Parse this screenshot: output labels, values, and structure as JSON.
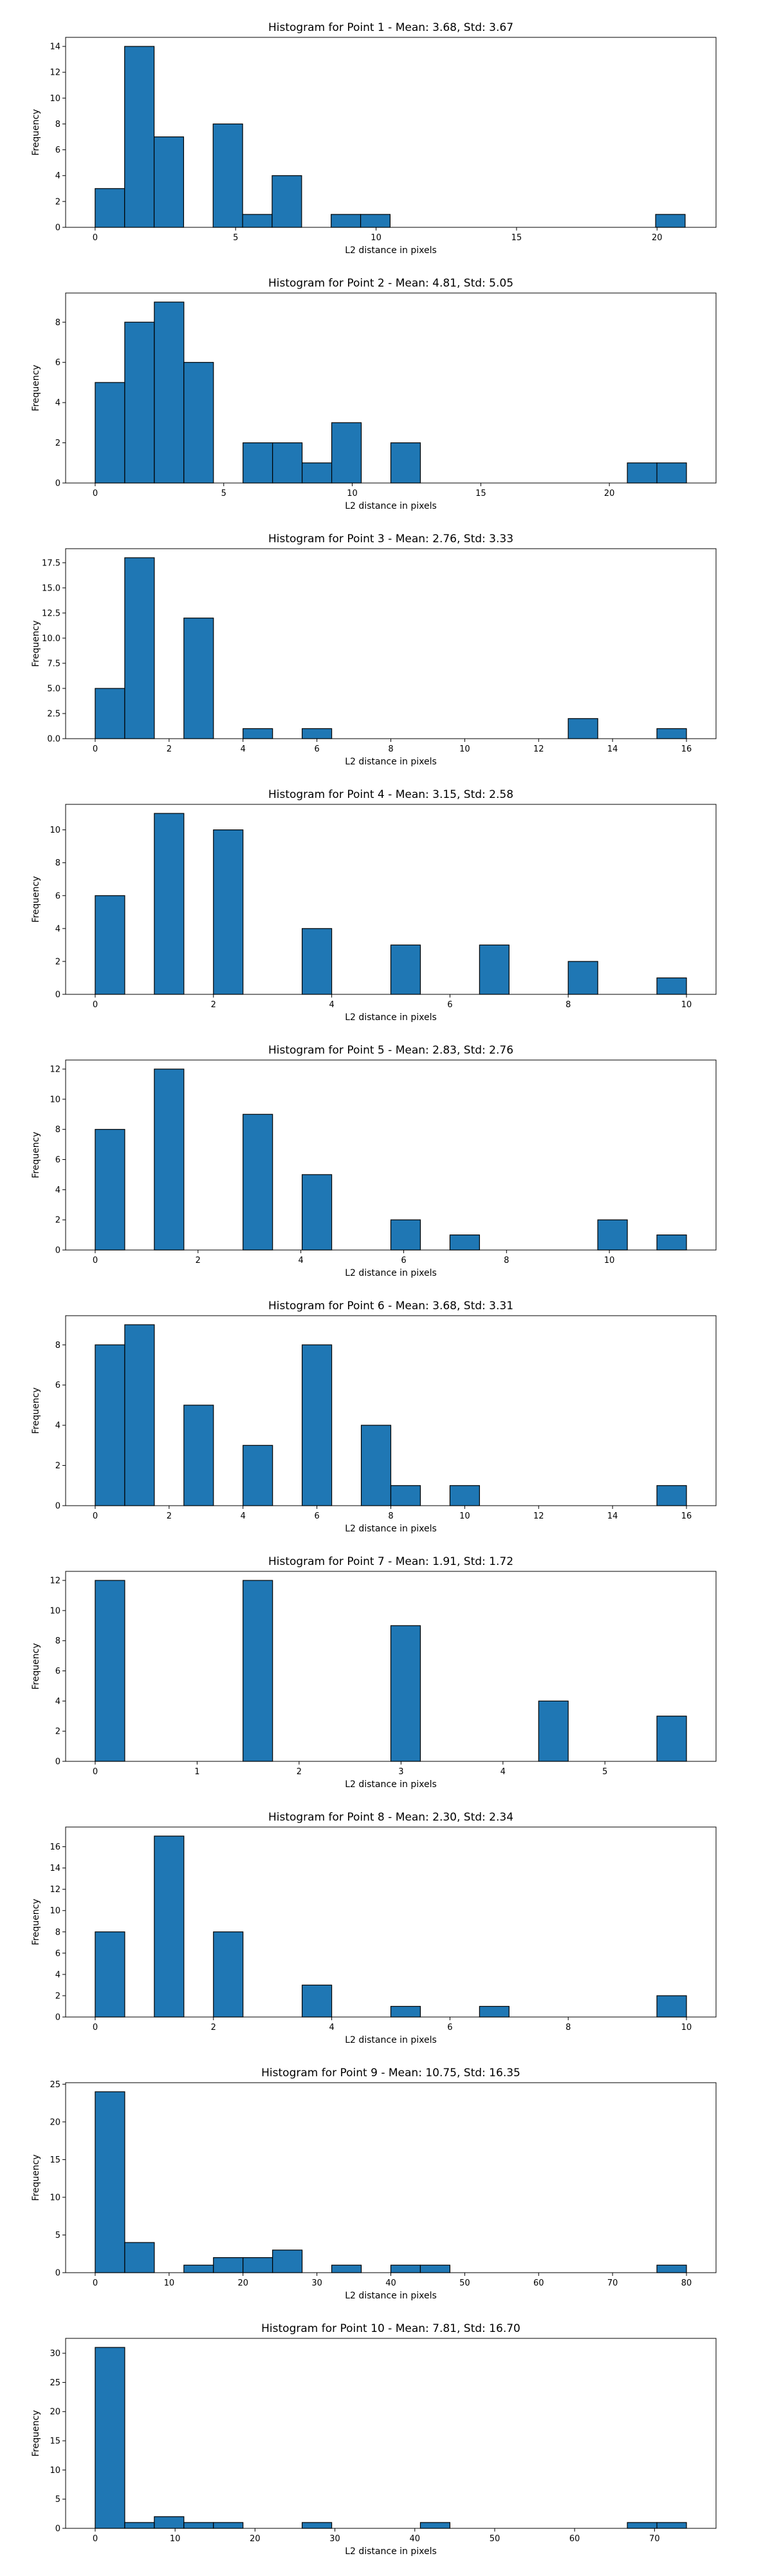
{
  "style": {
    "bar_fill": "#1f77b4",
    "bar_edge": "#000000",
    "axes_edge": "#000000",
    "background": "#ffffff"
  },
  "chart_data": [
    {
      "type": "bar",
      "title": "Histogram for Point 1 - Mean: 3.68, Std: 3.67",
      "xlabel": "L2 distance in pixels",
      "ylabel": "Frequency",
      "xlim": [
        -1.05,
        22.1
      ],
      "ylim": [
        0,
        14.7
      ],
      "xticks": [
        0,
        5,
        10,
        15,
        20
      ],
      "yticks": [
        0,
        2,
        4,
        6,
        8,
        10,
        12,
        14
      ],
      "bins": [
        [
          0,
          1.05
        ],
        [
          1.05,
          2.1
        ],
        [
          2.1,
          3.15
        ],
        [
          4.2,
          5.25
        ],
        [
          5.25,
          6.3
        ],
        [
          6.3,
          7.35
        ],
        [
          8.4,
          9.45
        ],
        [
          9.45,
          10.5
        ],
        [
          19.95,
          21.0
        ]
      ],
      "values": [
        3,
        14,
        7,
        8,
        1,
        4,
        1,
        1,
        1
      ],
      "grid": false
    },
    {
      "type": "bar",
      "title": "Histogram for Point 2 - Mean: 4.81, Std: 5.05",
      "xlabel": "L2 distance in pixels",
      "ylabel": "Frequency",
      "xlim": [
        -1.15,
        24.15
      ],
      "ylim": [
        0,
        9.45
      ],
      "xticks": [
        0,
        5,
        10,
        15,
        20
      ],
      "yticks": [
        0,
        2,
        4,
        6,
        8
      ],
      "bins": [
        [
          0,
          1.15
        ],
        [
          1.15,
          2.3
        ],
        [
          2.3,
          3.45
        ],
        [
          3.45,
          4.6
        ],
        [
          5.75,
          6.9
        ],
        [
          6.9,
          8.05
        ],
        [
          8.05,
          9.2
        ],
        [
          9.2,
          10.35
        ],
        [
          11.5,
          12.65
        ],
        [
          20.7,
          21.85
        ],
        [
          21.85,
          23.0
        ]
      ],
      "values": [
        5,
        8,
        9,
        6,
        2,
        2,
        1,
        3,
        2,
        1,
        1
      ],
      "grid": false
    },
    {
      "type": "bar",
      "title": "Histogram for Point 3 - Mean: 2.76, Std: 3.33",
      "xlabel": "L2 distance in pixels",
      "ylabel": "Frequency",
      "xlim": [
        -0.8,
        16.8
      ],
      "ylim": [
        0,
        18.9
      ],
      "xticks": [
        0,
        2,
        4,
        6,
        8,
        10,
        12,
        14,
        16
      ],
      "yticks": [
        0.0,
        2.5,
        5.0,
        7.5,
        10.0,
        12.5,
        15.0,
        17.5
      ],
      "ytick_labels": [
        "0.0",
        "2.5",
        "5.0",
        "7.5",
        "10.0",
        "12.5",
        "15.0",
        "17.5"
      ],
      "bins": [
        [
          0,
          0.8
        ],
        [
          0.8,
          1.6
        ],
        [
          2.4,
          3.2
        ],
        [
          4.0,
          4.8
        ],
        [
          5.6,
          6.4
        ],
        [
          12.8,
          13.6
        ],
        [
          15.2,
          16.0
        ]
      ],
      "values": [
        5,
        18,
        12,
        1,
        1,
        2,
        1
      ],
      "grid": false
    },
    {
      "type": "bar",
      "title": "Histogram for Point 4 - Mean: 3.15, Std: 2.58",
      "xlabel": "L2 distance in pixels",
      "ylabel": "Frequency",
      "xlim": [
        -0.5,
        10.5
      ],
      "ylim": [
        0,
        11.55
      ],
      "xticks": [
        0,
        2,
        4,
        6,
        8,
        10
      ],
      "yticks": [
        0,
        2,
        4,
        6,
        8,
        10
      ],
      "bins": [
        [
          0,
          0.5
        ],
        [
          1.0,
          1.5
        ],
        [
          2.0,
          2.5
        ],
        [
          3.5,
          4.0
        ],
        [
          5.0,
          5.5
        ],
        [
          6.5,
          7.0
        ],
        [
          8.0,
          8.5
        ],
        [
          9.5,
          10.0
        ]
      ],
      "values": [
        6,
        11,
        10,
        4,
        3,
        3,
        2,
        1
      ],
      "grid": false
    },
    {
      "type": "bar",
      "title": "Histogram for Point 5 - Mean: 2.83, Std: 2.76",
      "xlabel": "L2 distance in pixels",
      "ylabel": "Frequency",
      "xlim": [
        -0.575,
        12.075
      ],
      "ylim": [
        0,
        12.6
      ],
      "xticks": [
        0,
        2,
        4,
        6,
        8,
        10
      ],
      "yticks": [
        0,
        2,
        4,
        6,
        8,
        10,
        12
      ],
      "bins": [
        [
          0,
          0.575
        ],
        [
          1.15,
          1.725
        ],
        [
          2.875,
          3.45
        ],
        [
          4.025,
          4.6
        ],
        [
          5.75,
          6.325
        ],
        [
          6.9,
          7.475
        ],
        [
          9.775,
          10.35
        ],
        [
          10.925,
          11.5
        ]
      ],
      "values": [
        8,
        12,
        9,
        5,
        2,
        1,
        2,
        1
      ],
      "grid": false
    },
    {
      "type": "bar",
      "title": "Histogram for Point 6 - Mean: 3.68, Std: 3.31",
      "xlabel": "L2 distance in pixels",
      "ylabel": "Frequency",
      "xlim": [
        -0.8,
        16.8
      ],
      "ylim": [
        0,
        9.45
      ],
      "xticks": [
        0,
        2,
        4,
        6,
        8,
        10,
        12,
        14,
        16
      ],
      "yticks": [
        0,
        2,
        4,
        6,
        8
      ],
      "bins": [
        [
          0,
          0.8
        ],
        [
          0.8,
          1.6
        ],
        [
          2.4,
          3.2
        ],
        [
          4.0,
          4.8
        ],
        [
          5.6,
          6.4
        ],
        [
          7.2,
          8.0
        ],
        [
          8.0,
          8.8
        ],
        [
          9.6,
          10.4
        ],
        [
          15.2,
          16.0
        ]
      ],
      "values": [
        8,
        9,
        5,
        3,
        8,
        4,
        1,
        1,
        1
      ],
      "grid": false
    },
    {
      "type": "bar",
      "title": "Histogram for Point 7 - Mean: 1.91, Std: 1.72",
      "xlabel": "L2 distance in pixels",
      "ylabel": "Frequency",
      "xlim": [
        -0.29,
        6.09
      ],
      "ylim": [
        0,
        12.6
      ],
      "xticks": [
        0,
        1,
        2,
        3,
        4,
        5
      ],
      "yticks": [
        0,
        2,
        4,
        6,
        8,
        10,
        12
      ],
      "bins": [
        [
          0,
          0.29
        ],
        [
          1.45,
          1.74
        ],
        [
          2.9,
          3.19
        ],
        [
          4.35,
          4.64
        ],
        [
          5.51,
          5.8
        ]
      ],
      "values": [
        12,
        12,
        9,
        4,
        3
      ],
      "grid": false
    },
    {
      "type": "bar",
      "title": "Histogram for Point 8 - Mean: 2.30, Std: 2.34",
      "xlabel": "L2 distance in pixels",
      "ylabel": "Frequency",
      "xlim": [
        -0.5,
        10.5
      ],
      "ylim": [
        0,
        17.85
      ],
      "xticks": [
        0,
        2,
        4,
        6,
        8,
        10
      ],
      "yticks": [
        0,
        2,
        4,
        6,
        8,
        10,
        12,
        14,
        16
      ],
      "bins": [
        [
          0,
          0.5
        ],
        [
          1.0,
          1.5
        ],
        [
          2.0,
          2.5
        ],
        [
          3.5,
          4.0
        ],
        [
          5.0,
          5.5
        ],
        [
          6.5,
          7.0
        ],
        [
          9.5,
          10.0
        ]
      ],
      "values": [
        8,
        17,
        8,
        3,
        1,
        1,
        2
      ],
      "grid": false
    },
    {
      "type": "bar",
      "title": "Histogram for Point 9 - Mean: 10.75, Std: 16.35",
      "xlabel": "L2 distance in pixels",
      "ylabel": "Frequency",
      "xlim": [
        -4.0,
        84.0
      ],
      "ylim": [
        0,
        25.2
      ],
      "xticks": [
        0,
        10,
        20,
        30,
        40,
        50,
        60,
        70,
        80
      ],
      "yticks": [
        0,
        5,
        10,
        15,
        20,
        25
      ],
      "bins": [
        [
          0,
          4.0
        ],
        [
          4.0,
          8.0
        ],
        [
          12.0,
          16.0
        ],
        [
          16.0,
          20.0
        ],
        [
          20.0,
          24.0
        ],
        [
          24.0,
          28.0
        ],
        [
          32.0,
          36.0
        ],
        [
          40.0,
          44.0
        ],
        [
          44.0,
          48.0
        ],
        [
          76.0,
          80.0
        ]
      ],
      "values": [
        24,
        4,
        1,
        2,
        2,
        3,
        1,
        1,
        1,
        1
      ],
      "grid": false
    },
    {
      "type": "bar",
      "title": "Histogram for Point 10 - Mean: 7.81, Std: 16.70",
      "xlabel": "L2 distance in pixels",
      "ylabel": "Frequency",
      "xlim": [
        -3.7,
        77.7
      ],
      "ylim": [
        0,
        32.55
      ],
      "xticks": [
        0,
        10,
        20,
        30,
        40,
        50,
        60,
        70
      ],
      "yticks": [
        0,
        5,
        10,
        15,
        20,
        25,
        30
      ],
      "bins": [
        [
          0,
          3.7
        ],
        [
          3.7,
          7.4
        ],
        [
          7.4,
          11.1
        ],
        [
          11.1,
          14.8
        ],
        [
          14.8,
          18.5
        ],
        [
          25.9,
          29.6
        ],
        [
          40.7,
          44.4
        ],
        [
          66.6,
          70.3
        ],
        [
          70.3,
          74.0
        ]
      ],
      "values": [
        31,
        1,
        2,
        1,
        1,
        1,
        1,
        1,
        1
      ],
      "grid": false
    }
  ]
}
